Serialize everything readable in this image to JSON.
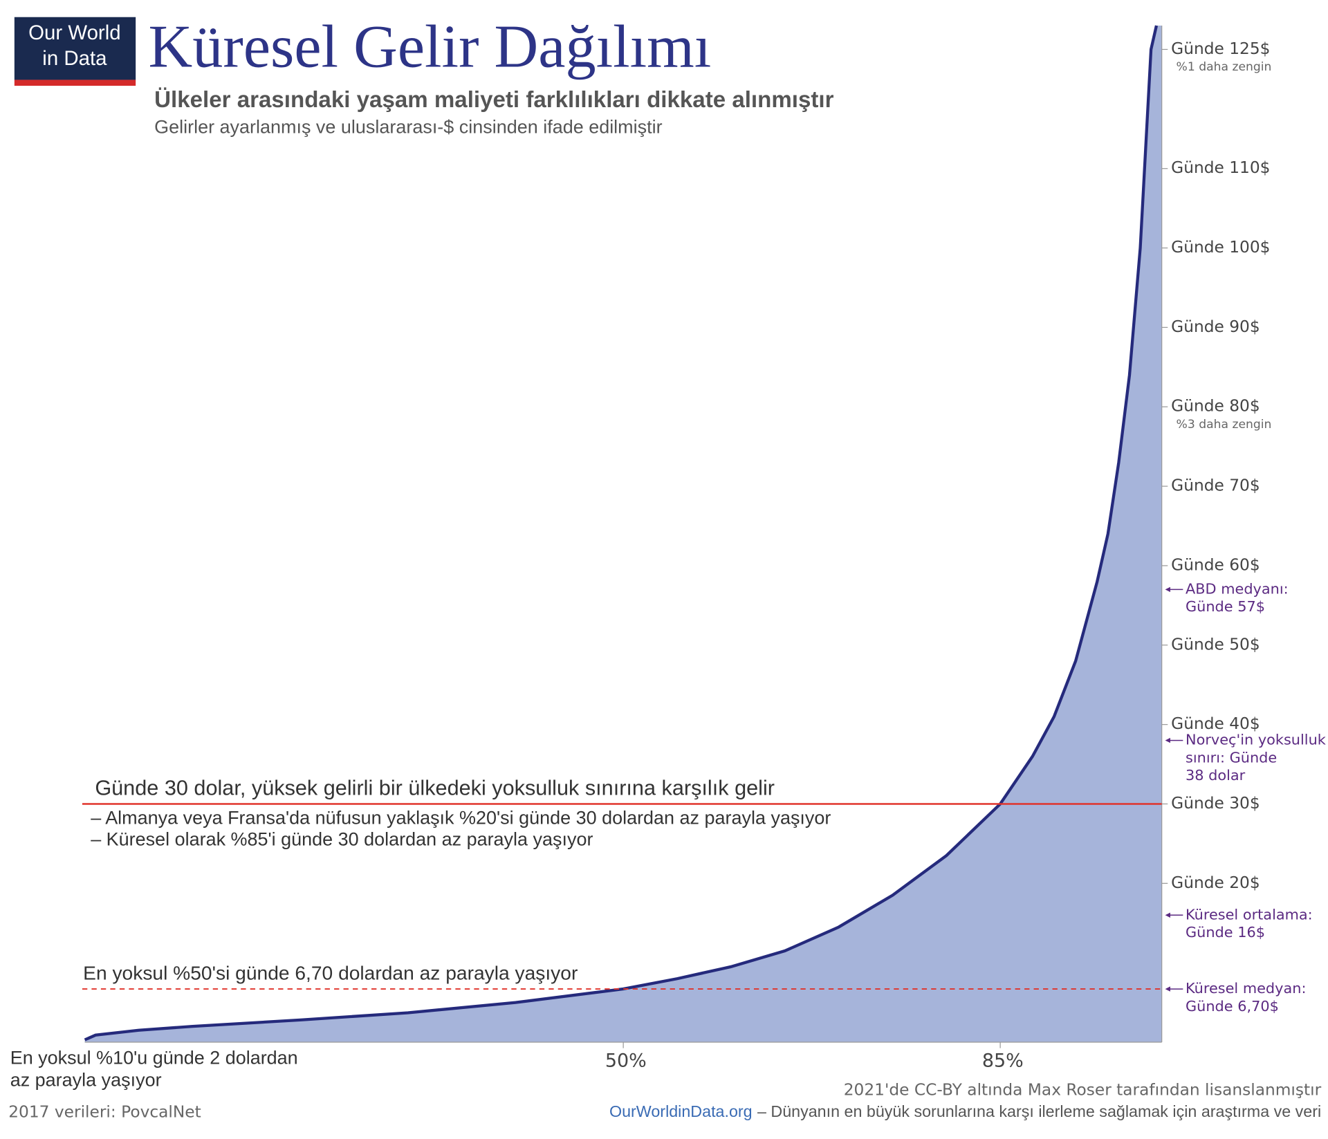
{
  "logo": [
    "Our World",
    "in Data"
  ],
  "chart_data": {
    "type": "area",
    "title": "Küresel Gelir Dağılımı",
    "subtitle": "Ülkeler arasındaki yaşam maliyeti farklılıkları dikkate alınmıştır",
    "note": "Gelirler ayarlanmış ve uluslararası-$ cinsinden ifade edilmiştir",
    "x": [
      0,
      1,
      5,
      10,
      20,
      30,
      40,
      50,
      55,
      60,
      65,
      70,
      75,
      80,
      85,
      88,
      90,
      92,
      94,
      95,
      96,
      97,
      98,
      99,
      99.5
    ],
    "values": [
      0.3,
      0.9,
      1.5,
      2,
      2.8,
      3.7,
      5,
      6.7,
      8,
      9.5,
      11.5,
      14.5,
      18.5,
      23.5,
      30,
      36,
      41,
      48,
      58,
      64,
      73,
      84,
      100,
      125,
      128
    ],
    "color": "#a6b4da",
    "line_color": "#252a7c",
    "xlim": [
      0,
      100
    ],
    "xticks": [
      {
        "value": 50,
        "label": "50%"
      },
      {
        "value": 85,
        "label": "85%"
      }
    ],
    "ylim": [
      0,
      128
    ],
    "yticks": [
      {
        "value": 20,
        "label": "Günde 20$"
      },
      {
        "value": 30,
        "label": "Günde 30$"
      },
      {
        "value": 40,
        "label": "Günde 40$"
      },
      {
        "value": 50,
        "label": "Günde 50$"
      },
      {
        "value": 60,
        "label": "Günde 60$"
      },
      {
        "value": 70,
        "label": "Günde 70$"
      },
      {
        "value": 80,
        "label": "Günde 80$"
      },
      {
        "value": 90,
        "label": "Günde 90$"
      },
      {
        "value": 100,
        "label": "Günde 100$"
      },
      {
        "value": 110,
        "label": "Günde 110$"
      },
      {
        "value": 125,
        "label": "Günde 125$"
      }
    ],
    "tick_notes": [
      {
        "value": 125,
        "label": "%1 daha zengin"
      },
      {
        "value": 80,
        "label": "%3 daha zengin"
      }
    ],
    "reference_lines": [
      {
        "value": 30,
        "color": "#e0332b",
        "dashed": false,
        "label": "Günde 30 dolar, yüksek gelirli bir ülkedeki yoksulluk sınırına karşılık gelir",
        "notes": [
          "– Almanya veya Fransa'da nüfusun yaklaşık %20'si günde 30 dolardan az parayla yaşıyor",
          "– Küresel olarak %85'i günde 30 dolardan az parayla yaşıyor"
        ]
      },
      {
        "value": 6.7,
        "color": "#e0332b",
        "dashed": true,
        "label": "En yoksul %50'si günde 6,70 dolardan az parayla yaşıyor",
        "notes": []
      }
    ],
    "markers": [
      {
        "value": 57,
        "lines": [
          "ABD medyanı:",
          "Günde 57$"
        ]
      },
      {
        "value": 38,
        "lines": [
          "Norveç'in yoksulluk",
          "sınırı: Günde",
          "38 dolar"
        ]
      },
      {
        "value": 16,
        "lines": [
          "Küresel ortalama:",
          "Günde 16$"
        ]
      },
      {
        "value": 6.7,
        "lines": [
          "Küresel medyan:",
          "Günde 6,70$"
        ]
      }
    ],
    "marker_color": "#5b2a82",
    "corner_note": [
      "En yoksul %10'u günde 2 dolardan",
      "az parayla yaşıyor"
    ]
  },
  "footer": {
    "source": "2017 verileri: PovcalNet",
    "license": "2021'de CC-BY altında Max Roser tarafından lisanslanmıştır",
    "site": "OurWorldinData.org",
    "tagline": "– Dünyanın en büyük sorunlarına karşı ilerleme sağlamak için araştırma ve veri"
  }
}
